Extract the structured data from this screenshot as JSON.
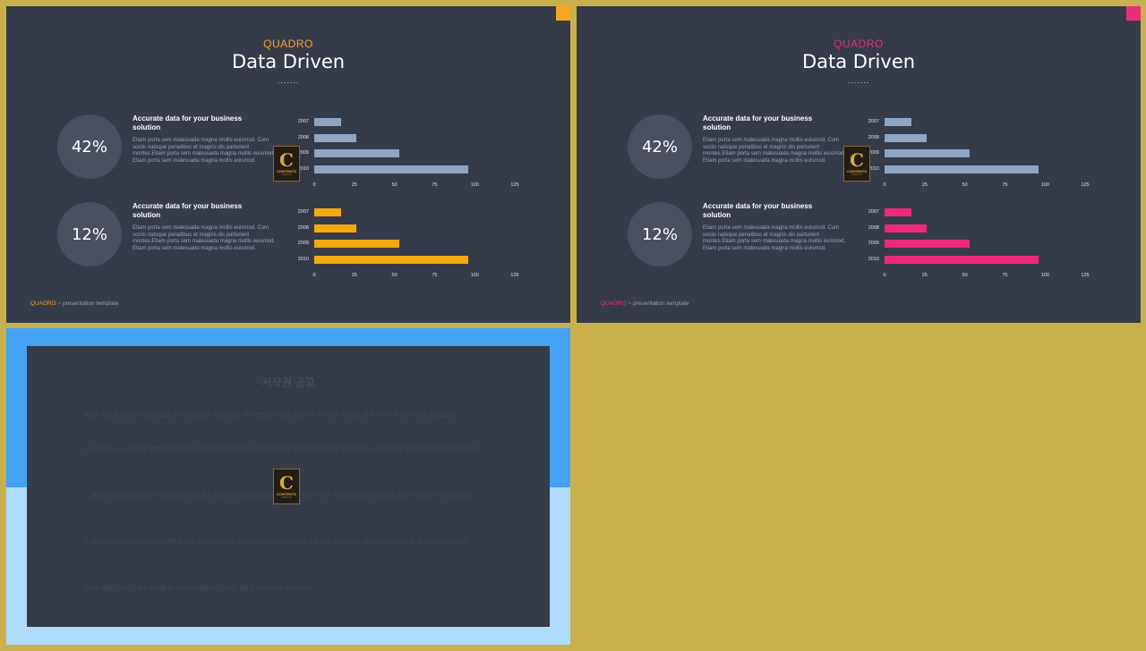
{
  "slides": [
    {
      "accent": "#f5a623",
      "kicker": "QUADRO",
      "title": "Data Driven",
      "dots": ".......",
      "blocks": [
        {
          "percent": "42%",
          "heading": "Accurate data for your business solution",
          "body": "Etiam porta sem malesuada magna mollis euismod. Cum sociis natoque penatibus et magnis dis parturient montes.Etiam porta sem malesuada magna mollis euismod. Etiam porta sem malesuada magna mollis euismod.",
          "bar_color": "#8ea5c4"
        },
        {
          "percent": "12%",
          "heading": "Accurate data for your business solution",
          "body": "Etiam porta sem malesuada magna mollis euismod. Cum sociis natoque penatibus et magnis dis parturient montes.Etiam porta sem malesuada magna mollis euismod. Etiam porta sem malesuada magna mollis euismod.",
          "bar_color": "#f5a911"
        }
      ],
      "footer_brand": "QUADRO",
      "footer_text": " ~ presentation template"
    },
    {
      "accent": "#e8307a",
      "kicker": "QUADRO",
      "title": "Data Driven",
      "dots": ".......",
      "blocks": [
        {
          "percent": "42%",
          "heading": "Accurate data for your business solution",
          "body": "Etiam porta sem malesuada magna mollis euismod. Cum sociis natoque penatibus et magnis dis parturient montes.Etiam porta sem malesuada magna mollis euismod. Etiam porta sem malesuada magna mollis euismod.",
          "bar_color": "#8ea5c4"
        },
        {
          "percent": "12%",
          "heading": "Accurate data for your business solution",
          "body": "Etiam porta sem malesuada magna mollis euismod. Cum sociis natoque penatibus et magnis dis parturient montes.Etiam porta sem malesuada magna mollis euismod. Etiam porta sem malesuada magna mollis euismod.",
          "bar_color": "#ec2a78"
        }
      ],
      "footer_brand": "QUADRO",
      "footer_text": " ~ presentation template"
    }
  ],
  "chart_data": [
    {
      "type": "bar",
      "orientation": "horizontal",
      "categories": [
        "2007",
        "2008",
        "2009",
        "2010"
      ],
      "values": [
        17,
        26,
        53,
        96
      ],
      "xlim": [
        0,
        125
      ],
      "ticks": [
        0,
        25,
        50,
        75,
        100,
        125
      ]
    },
    {
      "type": "bar",
      "orientation": "horizontal",
      "categories": [
        "2007",
        "2008",
        "2009",
        "2010"
      ],
      "values": [
        17,
        26,
        53,
        96
      ],
      "xlim": [
        0,
        125
      ],
      "ticks": [
        0,
        25,
        50,
        75,
        100,
        125
      ]
    },
    {
      "type": "bar",
      "orientation": "horizontal",
      "categories": [
        "2007",
        "2008",
        "2009",
        "2010"
      ],
      "values": [
        17,
        26,
        53,
        96
      ],
      "xlim": [
        0,
        125
      ],
      "ticks": [
        0,
        25,
        50,
        75,
        100,
        125
      ]
    },
    {
      "type": "bar",
      "orientation": "horizontal",
      "categories": [
        "2007",
        "2008",
        "2009",
        "2010"
      ],
      "values": [
        17,
        26,
        53,
        96
      ],
      "xlim": [
        0,
        125
      ],
      "ticks": [
        0,
        25,
        50,
        75,
        100,
        125
      ]
    }
  ],
  "logo": {
    "letter": "C",
    "text": "CONTENTS",
    "subtext": "PREMIUM"
  },
  "notice": {
    "title": "저작권 공고",
    "paragraphs": [
      "콘텐츠 제작을 사용하시 전에 다음의 정부의 요청들을 저작권 보호 위 사용됩니다. 모든 콘텐츠 및 이미지를 사용하는 경우 사용자 계약은 승인이 필요합니다.",
      "1. 저작권(Copyright) 모든 콘텐츠의 저작권은 저작권자에게 있습니다. 허가 없이 복제, 배포, 판매하는 것을 금지합니다. 개인 및 회사 내부 용도로만 사용 가능합니다.",
      "2. 폰트(Font) 콘텐츠 제작에 사용된 폰트는 해당 폰트 제작사의 라이선스 정책을 따릅니다. 상업적 사용 시 해당 폰트의 라이선스를 반드시 확인해 주시기 바랍니다.",
      "3. 이미지(Image) & 아이콘(Icon) 콘텐츠 내에 사용된 이미지와 아이콘은 저작권이 있는 무료 또는 유료 자료입니다. 별도로 사용 시 출처를 확인하시기 바랍니다.",
      "콘텐츠 제작 가이드는 별도 자료를 참고하시기 바랍니다. 자세한 내용은 홈페이지를 참조하세요."
    ]
  }
}
